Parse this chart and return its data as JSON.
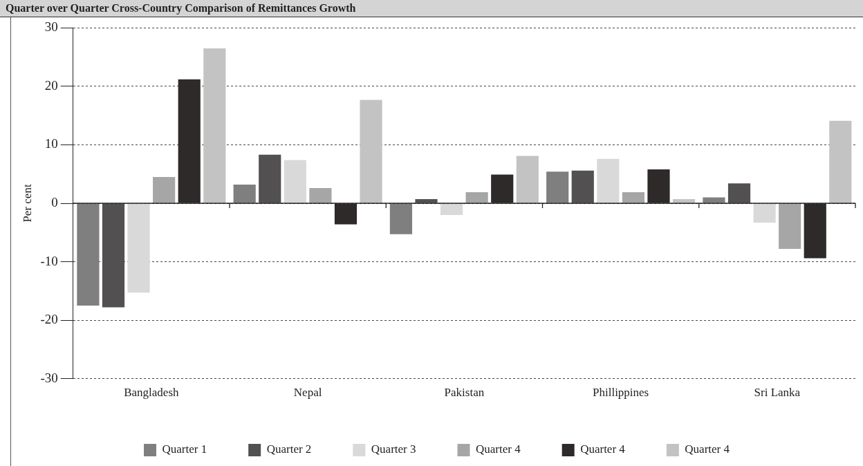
{
  "chart_data": {
    "type": "bar",
    "title": "Quarter over Quarter Cross-Country Comparison of Remittances Growth",
    "ylabel": "Per cent",
    "categories": [
      "Bangladesh",
      "Nepal",
      "Pakistan",
      "Phillippines",
      "Sri Lanka"
    ],
    "series": [
      {
        "name": "Quarter 1",
        "color": "#7f7f7f",
        "values": [
          -17.5,
          3.2,
          -5.3,
          5.4,
          1.0
        ]
      },
      {
        "name": "Quarter 2",
        "color": "#525051",
        "values": [
          -17.8,
          8.3,
          0.7,
          5.6,
          3.4
        ]
      },
      {
        "name": "Quarter 3",
        "color": "#d9d9d9",
        "values": [
          -15.3,
          7.4,
          -2.0,
          7.6,
          -3.3
        ]
      },
      {
        "name": "Quarter 4",
        "color": "#a6a6a6",
        "values": [
          4.5,
          2.6,
          1.9,
          1.9,
          -7.8
        ]
      },
      {
        "name": "Quarter 4",
        "color": "#2d2a29",
        "values": [
          21.2,
          -3.6,
          4.9,
          5.8,
          -9.4
        ]
      },
      {
        "name": "Quarter 4",
        "color": "#c3c3c3",
        "values": [
          26.5,
          17.7,
          8.1,
          0.7,
          14.1
        ]
      }
    ],
    "ylim": [
      -30,
      30
    ],
    "yticks": [
      -30,
      -20,
      -10,
      0,
      10,
      20,
      30
    ],
    "grid": "y",
    "legend": "bottom"
  }
}
